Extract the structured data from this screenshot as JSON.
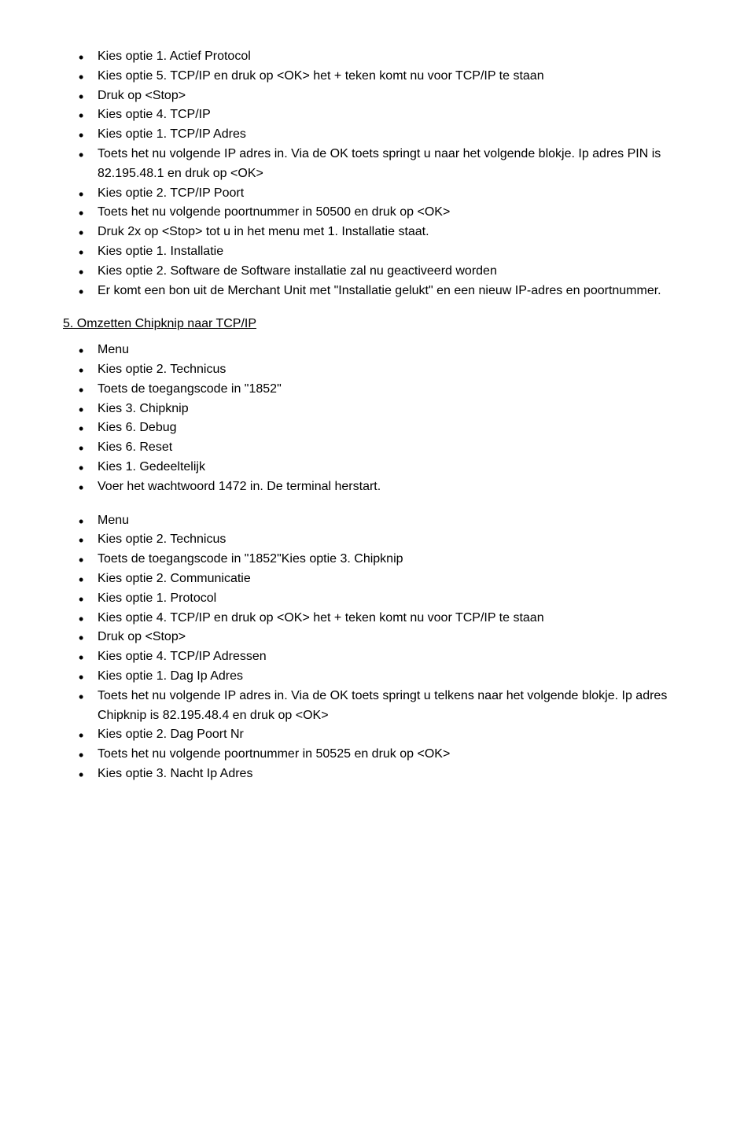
{
  "list1": [
    "Kies optie 1. Actief Protocol",
    "Kies optie 5. TCP/IP en druk op <OK> het + teken komt nu voor TCP/IP te staan",
    "Druk op <Stop>",
    "Kies optie 4. TCP/IP",
    "Kies optie 1. TCP/IP Adres",
    "Toets het nu volgende IP adres in. Via de OK toets springt u naar het volgende blokje. Ip adres PIN is 82.195.48.1 en druk op <OK>",
    "Kies optie 2. TCP/IP Poort",
    "Toets het nu volgende poortnummer in 50500 en druk op <OK>",
    "Druk 2x op <Stop> tot u in het menu met 1. Installatie staat.",
    "Kies optie 1. Installatie",
    "Kies optie 2. Software de Software installatie zal nu geactiveerd worden",
    "Er komt een bon uit de Merchant Unit met \"Installatie gelukt\" en een nieuw IP-adres en poortnummer."
  ],
  "heading5": "5. Omzetten Chipknip naar TCP/IP",
  "list2": [
    "Menu",
    "Kies optie 2. Technicus",
    "Toets de toegangscode in \"1852\"",
    "Kies 3. Chipknip",
    "Kies 6. Debug",
    "Kies 6. Reset",
    "Kies 1. Gedeeltelijk",
    "Voer het wachtwoord 1472 in. De terminal herstart."
  ],
  "list3": [
    "Menu",
    "Kies optie 2. Technicus",
    "Toets de toegangscode in \"1852\"Kies optie 3. Chipknip",
    "Kies optie 2. Communicatie",
    "Kies optie 1. Protocol",
    "Kies optie 4. TCP/IP en druk op <OK> het + teken komt nu voor TCP/IP te staan",
    "Druk op <Stop>",
    "Kies optie 4. TCP/IP Adressen",
    "Kies optie 1. Dag Ip Adres",
    "Toets het nu volgende IP adres in. Via de OK toets springt u telkens naar het volgende blokje. Ip adres Chipknip is 82.195.48.4 en druk op <OK>",
    "Kies optie 2. Dag Poort Nr",
    "Toets het nu volgende poortnummer in 50525 en druk op <OK>",
    "Kies optie 3. Nacht Ip Adres"
  ]
}
